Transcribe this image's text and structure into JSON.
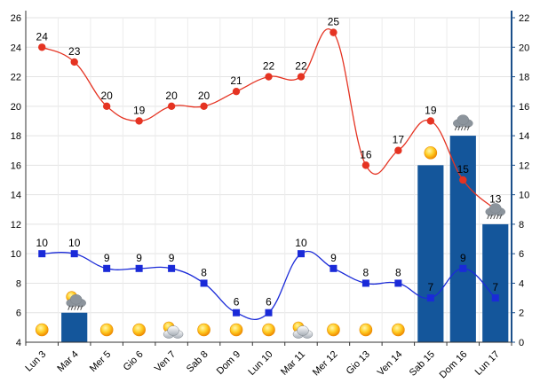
{
  "chart_data": {
    "type": "bar+line",
    "categories": [
      "Lun 3",
      "Mar 4",
      "Mer 5",
      "Gio 6",
      "Ven 7",
      "Sab 8",
      "Dom 9",
      "Lun 10",
      "Mar 11",
      "Mer 12",
      "Gio 13",
      "Ven 14",
      "Sab 15",
      "Dom 16",
      "Lun 17"
    ],
    "left_axis": {
      "ylim": [
        4,
        26
      ],
      "ticks": [
        4,
        6,
        8,
        10,
        12,
        14,
        16,
        18,
        20,
        22,
        24,
        26
      ]
    },
    "right_axis": {
      "ylim": [
        0,
        22
      ],
      "ticks": [
        0,
        2,
        4,
        6,
        8,
        10,
        12,
        14,
        16,
        18,
        20,
        22
      ],
      "color": "#1b4f8a"
    },
    "series": [
      {
        "type": "line",
        "axis": "left",
        "color": "#e53322",
        "marker": "circle",
        "values": [
          24,
          23,
          20,
          19,
          20,
          20,
          21,
          22,
          22,
          25,
          16,
          17,
          19,
          15,
          13
        ]
      },
      {
        "type": "line",
        "axis": "left",
        "color": "#1a2ad8",
        "marker": "square",
        "values": [
          10,
          10,
          9,
          9,
          9,
          8,
          6,
          6,
          10,
          9,
          8,
          8,
          7,
          9,
          7
        ]
      },
      {
        "type": "bar",
        "axis": "right",
        "color": "#14569b",
        "values": [
          0,
          2,
          0,
          0,
          0,
          0,
          0,
          0,
          0,
          0,
          0,
          0,
          12,
          14,
          8
        ]
      }
    ],
    "weather_icons": [
      "sun",
      "sun-rain",
      "sun",
      "sun",
      "sun-cloud",
      "sun",
      "sun",
      "sun",
      "sun-cloud",
      "sun",
      "sun",
      "sun",
      "sun",
      "rain",
      "rain"
    ],
    "grid": true,
    "title": "",
    "xlabel": "",
    "ylabel": ""
  }
}
